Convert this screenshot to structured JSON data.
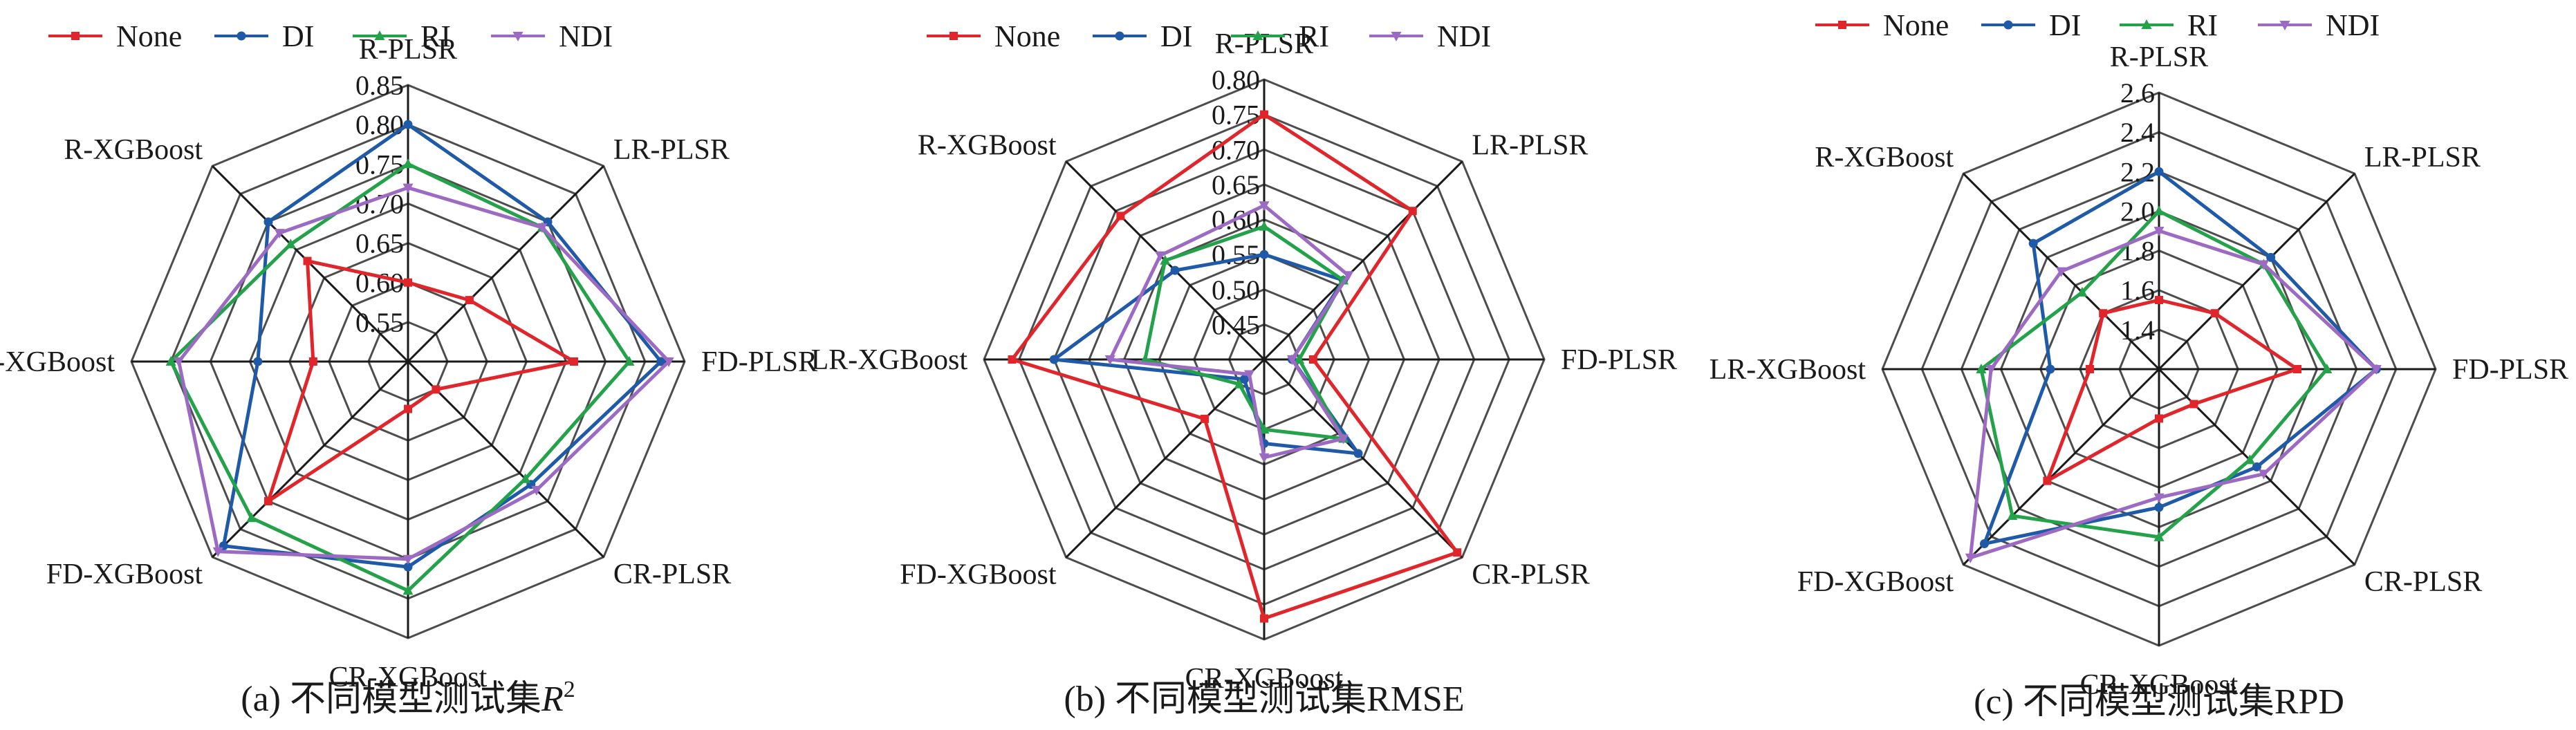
{
  "colors": {
    "None": "#e0252b",
    "DI": "#1f5aa8",
    "RI": "#23a24a",
    "NDI": "#9c6ac2"
  },
  "legend": [
    {
      "label": "None",
      "color": "#e0252b",
      "marker": "square"
    },
    {
      "label": "DI",
      "color": "#1f5aa8",
      "marker": "circle"
    },
    {
      "label": "RI",
      "color": "#23a24a",
      "marker": "triangle-up"
    },
    {
      "label": "NDI",
      "color": "#9c6ac2",
      "marker": "triangle-down"
    }
  ],
  "chart_data": [
    {
      "type": "radar",
      "caption_prefix": "(a) 不同模型测试集",
      "caption_metric": "R",
      "caption_superscript": "2",
      "axes": [
        "R-PLSR",
        "LR-PLSR",
        "FD-PLSR",
        "CR-PLSR",
        "CR-XGBoost",
        "FD-XGBoost",
        "LR-XGBoost",
        "R-XGBoost"
      ],
      "r_range": [
        0.5,
        0.85
      ],
      "ticks": [
        "0.55",
        "0.60",
        "0.65",
        "0.70",
        "0.75",
        "0.80",
        "0.85"
      ],
      "series": [
        {
          "name": "None",
          "values": [
            0.6,
            0.61,
            0.71,
            0.55,
            0.56,
            0.75,
            0.62,
            0.68
          ]
        },
        {
          "name": "DI",
          "values": [
            0.8,
            0.75,
            0.82,
            0.72,
            0.76,
            0.83,
            0.69,
            0.75
          ]
        },
        {
          "name": "RI",
          "values": [
            0.75,
            0.74,
            0.78,
            0.71,
            0.79,
            0.78,
            0.8,
            0.71
          ]
        },
        {
          "name": "NDI",
          "values": [
            0.72,
            0.74,
            0.83,
            0.73,
            0.75,
            0.84,
            0.79,
            0.73
          ]
        }
      ]
    },
    {
      "type": "radar",
      "caption_prefix": "(b) 不同模型测试集",
      "caption_metric": "RMSE",
      "caption_superscript": "",
      "axes": [
        "R-PLSR",
        "LR-PLSR",
        "FD-PLSR",
        "CR-PLSR",
        "CR-XGBoost",
        "FD-XGBoost",
        "LR-XGBoost",
        "R-XGBoost"
      ],
      "r_range": [
        0.4,
        0.8
      ],
      "ticks": [
        "0.45",
        "0.50",
        "0.55",
        "0.60",
        "0.65",
        "0.70",
        "0.75",
        "0.80"
      ],
      "series": [
        {
          "name": "None",
          "values": [
            0.75,
            0.7,
            0.47,
            0.79,
            0.77,
            0.52,
            0.76,
            0.69
          ]
        },
        {
          "name": "DI",
          "values": [
            0.55,
            0.56,
            0.44,
            0.59,
            0.52,
            0.44,
            0.7,
            0.58
          ]
        },
        {
          "name": "RI",
          "values": [
            0.59,
            0.56,
            0.45,
            0.56,
            0.5,
            0.45,
            0.57,
            0.6
          ]
        },
        {
          "name": "NDI",
          "values": [
            0.62,
            0.57,
            0.44,
            0.56,
            0.54,
            0.43,
            0.62,
            0.61
          ]
        }
      ]
    },
    {
      "type": "radar",
      "caption_prefix": "(c) 不同模型测试集",
      "caption_metric": "RPD",
      "caption_superscript": "",
      "axes": [
        "R-PLSR",
        "LR-PLSR",
        "FD-PLSR",
        "CR-PLSR",
        "CR-XGBoost",
        "FD-XGBoost",
        "LR-XGBoost",
        "R-XGBoost"
      ],
      "r_range": [
        1.2,
        2.6
      ],
      "ticks": [
        "1.4",
        "1.6",
        "1.8",
        "2.0",
        "2.2",
        "2.4",
        "2.6"
      ],
      "series": [
        {
          "name": "None",
          "values": [
            1.55,
            1.6,
            1.9,
            1.45,
            1.45,
            2.0,
            1.55,
            1.6
          ]
        },
        {
          "name": "DI",
          "values": [
            2.2,
            2.0,
            2.3,
            1.9,
            1.9,
            2.45,
            1.75,
            2.1
          ]
        },
        {
          "name": "RI",
          "values": [
            2.0,
            1.95,
            2.05,
            1.85,
            2.05,
            2.25,
            2.1,
            1.75
          ]
        },
        {
          "name": "NDI",
          "values": [
            1.9,
            1.95,
            2.3,
            1.95,
            1.85,
            2.55,
            2.05,
            1.9
          ]
        }
      ]
    }
  ]
}
